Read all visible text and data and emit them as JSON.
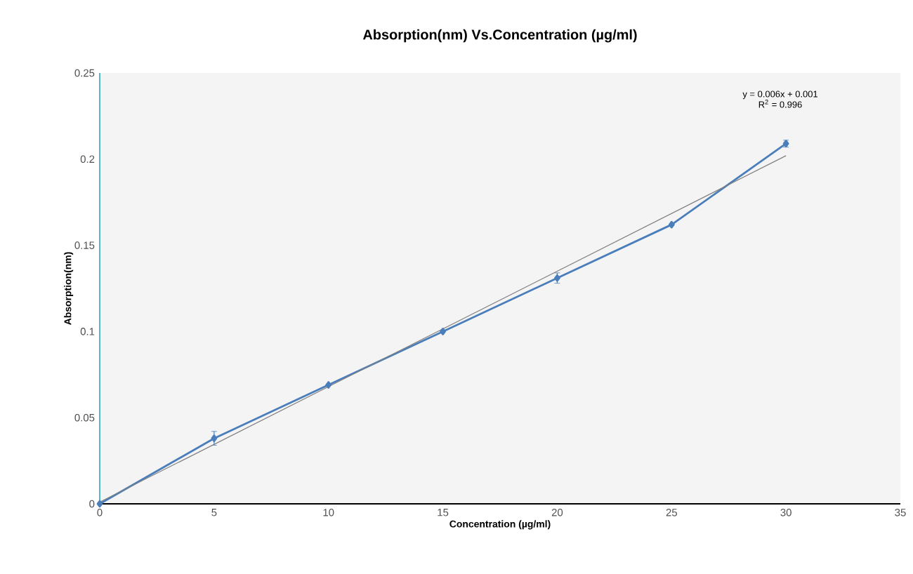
{
  "chart_data": {
    "type": "line",
    "title": "Absorption(nm) Vs.Concentration (µg/ml)",
    "xlabel": "Concentration (µg/ml)",
    "ylabel": "Absorption(nm)",
    "annotations": [
      "y = 0.006x + 0.001",
      "R$^{2}$ = 0.996"
    ],
    "x": [
      0,
      5,
      10,
      15,
      20,
      25,
      30
    ],
    "series": [
      {
        "color": "#4a7ebb",
        "values": [
          0,
          0.038,
          0.069,
          0.1,
          0.131,
          0.162,
          0.209
        ],
        "errors": [
          null,
          0.004,
          null,
          null,
          0.003,
          null,
          0.002
        ],
        "marker": "diamond"
      },
      {
        "color": "#7f7f7f",
        "x": [
          0,
          30
        ],
        "values": [
          0.001,
          0.202
        ],
        "marker": "none"
      }
    ],
    "xlim": [
      0,
      35
    ],
    "ylim": [
      0,
      0.25
    ],
    "xticks": [
      0,
      5,
      10,
      15,
      20,
      25,
      30,
      35
    ],
    "yticks": [
      0,
      0.05,
      0.1,
      0.15,
      0.2,
      0.25
    ],
    "grid": false
  }
}
